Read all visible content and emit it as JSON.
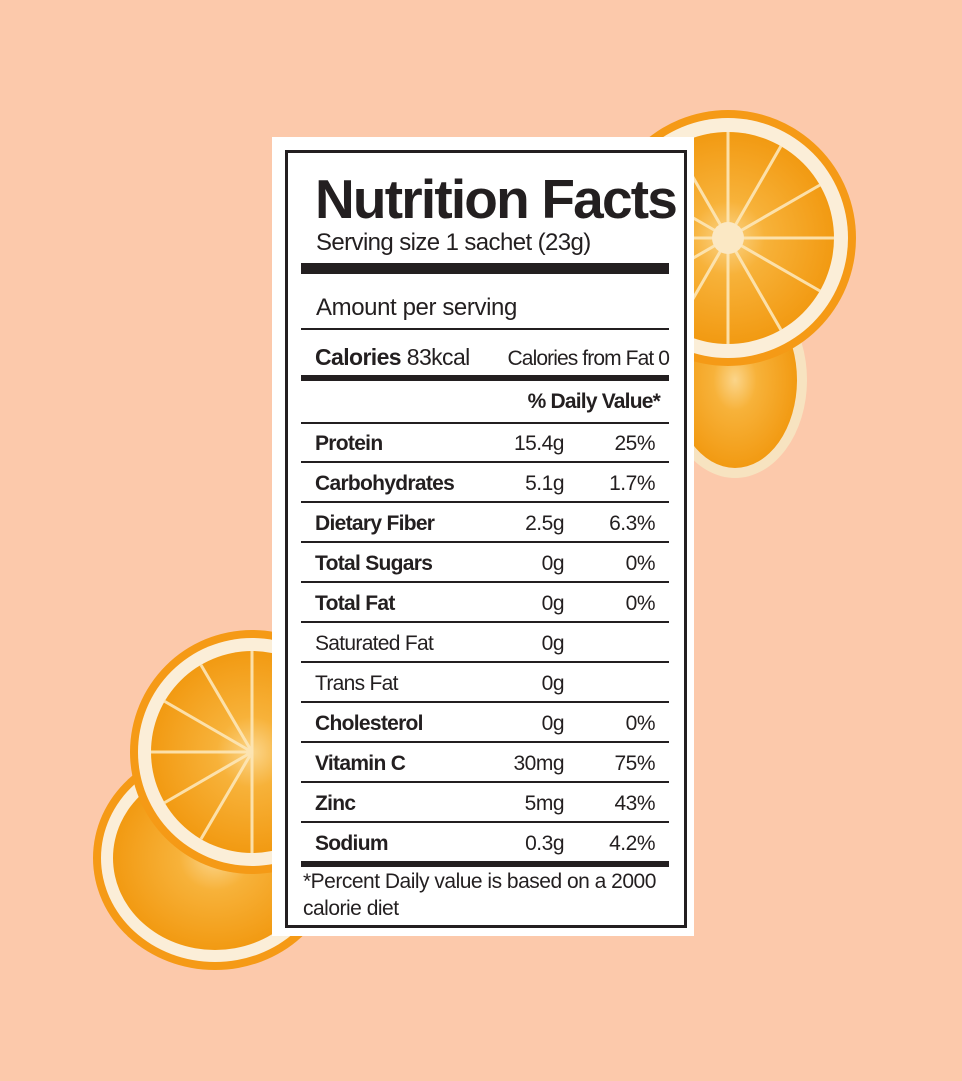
{
  "label": {
    "title": "Nutrition Facts",
    "serving_size": "Serving size 1 sachet (23g)",
    "amount_per_serving": "Amount per serving",
    "calories_label": "Calories",
    "calories_value": "83kcal",
    "calories_from_fat": "Calories from Fat 0",
    "daily_value_header": "% Daily Value*",
    "nutrients": [
      {
        "name": "Protein",
        "amount": "15.4g",
        "dv": "25%",
        "bold": true
      },
      {
        "name": "Carbohydrates",
        "amount": "5.1g",
        "dv": "1.7%",
        "bold": true
      },
      {
        "name": "Dietary Fiber",
        "amount": "2.5g",
        "dv": "6.3%",
        "bold": true
      },
      {
        "name": "Total Sugars",
        "amount": "0g",
        "dv": "0%",
        "bold": true
      },
      {
        "name": "Total Fat",
        "amount": "0g",
        "dv": "0%",
        "bold": true
      },
      {
        "name": "Saturated Fat",
        "amount": "0g",
        "dv": "",
        "bold": false
      },
      {
        "name": "Trans Fat",
        "amount": "0g",
        "dv": "",
        "bold": false
      },
      {
        "name": "Cholesterol",
        "amount": "0g",
        "dv": "0%",
        "bold": true
      },
      {
        "name": "Vitamin C",
        "amount": "30mg",
        "dv": "75%",
        "bold": true
      },
      {
        "name": "Zinc",
        "amount": "5mg",
        "dv": "43%",
        "bold": true
      },
      {
        "name": "Sodium",
        "amount": "0.3g",
        "dv": "4.2%",
        "bold": true
      }
    ],
    "footnote": "*Percent Daily value is based on a 2000 calorie diet"
  },
  "colors": {
    "background": "#fcc9ab",
    "ink": "#231f20",
    "orange_flesh": "#f4a51c",
    "orange_rind": "#f59a16"
  },
  "decorations": [
    "orange-slice-top-right",
    "orange-slice-bottom-left"
  ]
}
